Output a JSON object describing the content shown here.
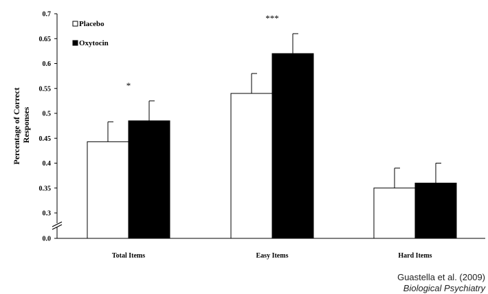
{
  "chart_data": {
    "type": "bar",
    "title": "",
    "xlabel": "",
    "ylabel_lines": [
      "Percentage of Correct",
      "Responses"
    ],
    "categories": [
      "Total Items",
      "Easy Items",
      "Hard Items"
    ],
    "series": [
      {
        "name": "Placebo",
        "values": [
          0.443,
          0.54,
          0.35
        ],
        "errors": [
          0.04,
          0.04,
          0.04
        ],
        "color": "#ffffff"
      },
      {
        "name": "Oxytocin",
        "values": [
          0.485,
          0.62,
          0.36
        ],
        "errors": [
          0.04,
          0.04,
          0.04
        ],
        "color": "#000000"
      }
    ],
    "annotations": [
      "*",
      "***",
      ""
    ],
    "yticks": [
      "0.0",
      "0.3",
      "0.35",
      "0.4",
      "0.45",
      "0.5",
      "0.55",
      "0.6",
      "0.65",
      "0.7"
    ],
    "ylim": [
      0.25,
      0.7
    ],
    "axis_break": true,
    "grid": false,
    "legend": "top-left"
  },
  "credit": {
    "authors": "Guastella et al. (2009)",
    "journal": "Biological Psychiatry"
  }
}
